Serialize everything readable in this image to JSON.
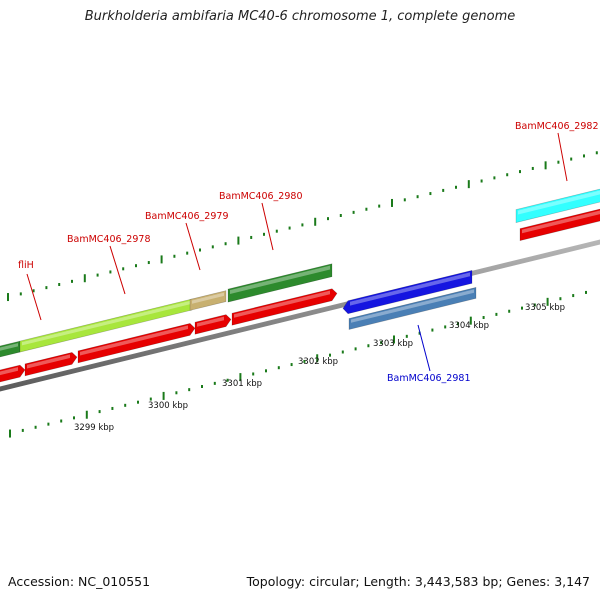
{
  "title": "Burkholderia ambifaria MC40-6 chromosome 1, complete genome",
  "footer": {
    "accession": "Accession: NC_010551",
    "summary": "Topology: circular; Length: 3,443,583 bp; Genes: 3,147"
  },
  "colors": {
    "backbone": "#8a8a8a",
    "tick": "#1a7a1a",
    "red": "#e60000",
    "darkgreen": "#2d8a2d",
    "lightgreen": "#a8e63c",
    "tan": "#c8b070",
    "cyan": "#33ffff",
    "blue": "#1515e0",
    "steelblue": "#4a7fb5",
    "label_red": "#cc0000",
    "label_blue": "#0000cc"
  },
  "scale_labels": [
    "3299 kbp",
    "3300 kbp",
    "3301 kbp",
    "3302 kbp",
    "3303 kbp",
    "3304 kbp",
    "3305 kbp"
  ],
  "gene_labels": [
    {
      "text": "fliH",
      "color": "label_red"
    },
    {
      "text": "BamMC406_2978",
      "color": "label_red"
    },
    {
      "text": "BamMC406_2979",
      "color": "label_red"
    },
    {
      "text": "BamMC406_2980",
      "color": "label_red"
    },
    {
      "text": "BamMC406_2982",
      "color": "label_red"
    },
    {
      "text": "BamMC406_2981",
      "color": "label_blue"
    }
  ]
}
